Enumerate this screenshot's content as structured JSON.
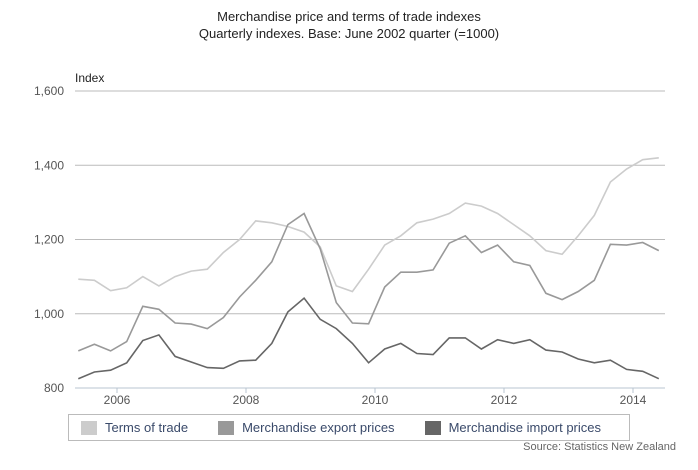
{
  "chart_data": {
    "type": "line",
    "title": "Merchandise price and terms of trade indexes",
    "subtitle": "Quarterly indexes. Base: June 2002 quarter (=1000)",
    "ylabel": "Index",
    "xlabel": "",
    "ylim": [
      800,
      1600
    ],
    "yticks": [
      "1,600",
      "1,400",
      "1,200",
      "1,000",
      "800"
    ],
    "ytick_values": [
      1600,
      1400,
      1200,
      1000,
      800
    ],
    "xticks": [
      "2006",
      "2008",
      "2010",
      "2012",
      "2014"
    ],
    "xtick_values": [
      2006,
      2008,
      2010,
      2012,
      2014
    ],
    "x_start": 2005.4,
    "x_step": 0.25,
    "grid": true,
    "legend_position": "bottom",
    "series": [
      {
        "name": "Terms of trade",
        "color": "#cccccc",
        "values": [
          1093,
          1090,
          1062,
          1070,
          1100,
          1075,
          1100,
          1115,
          1120,
          1165,
          1200,
          1250,
          1245,
          1235,
          1220,
          1180,
          1075,
          1060,
          1120,
          1185,
          1210,
          1245,
          1255,
          1270,
          1298,
          1290,
          1270,
          1240,
          1210,
          1170,
          1160,
          1210,
          1265,
          1355,
          1390,
          1415,
          1420
        ]
      },
      {
        "name": "Merchandise export prices",
        "color": "#999999",
        "values": [
          900,
          918,
          900,
          925,
          1020,
          1012,
          975,
          972,
          960,
          990,
          1045,
          1090,
          1140,
          1240,
          1270,
          1175,
          1030,
          975,
          973,
          1072,
          1112,
          1112,
          1118,
          1190,
          1210,
          1165,
          1185,
          1140,
          1130,
          1055,
          1038,
          1060,
          1090,
          1187,
          1185,
          1192,
          1170
        ]
      },
      {
        "name": "Merchandise import prices",
        "color": "#666666",
        "values": [
          825,
          843,
          848,
          868,
          928,
          943,
          885,
          870,
          855,
          853,
          873,
          875,
          920,
          1005,
          1042,
          985,
          960,
          920,
          868,
          905,
          920,
          893,
          890,
          935,
          935,
          905,
          930,
          920,
          930,
          902,
          897,
          878,
          868,
          875,
          850,
          845,
          825
        ]
      }
    ],
    "source": "Source: Statistics New Zealand"
  }
}
